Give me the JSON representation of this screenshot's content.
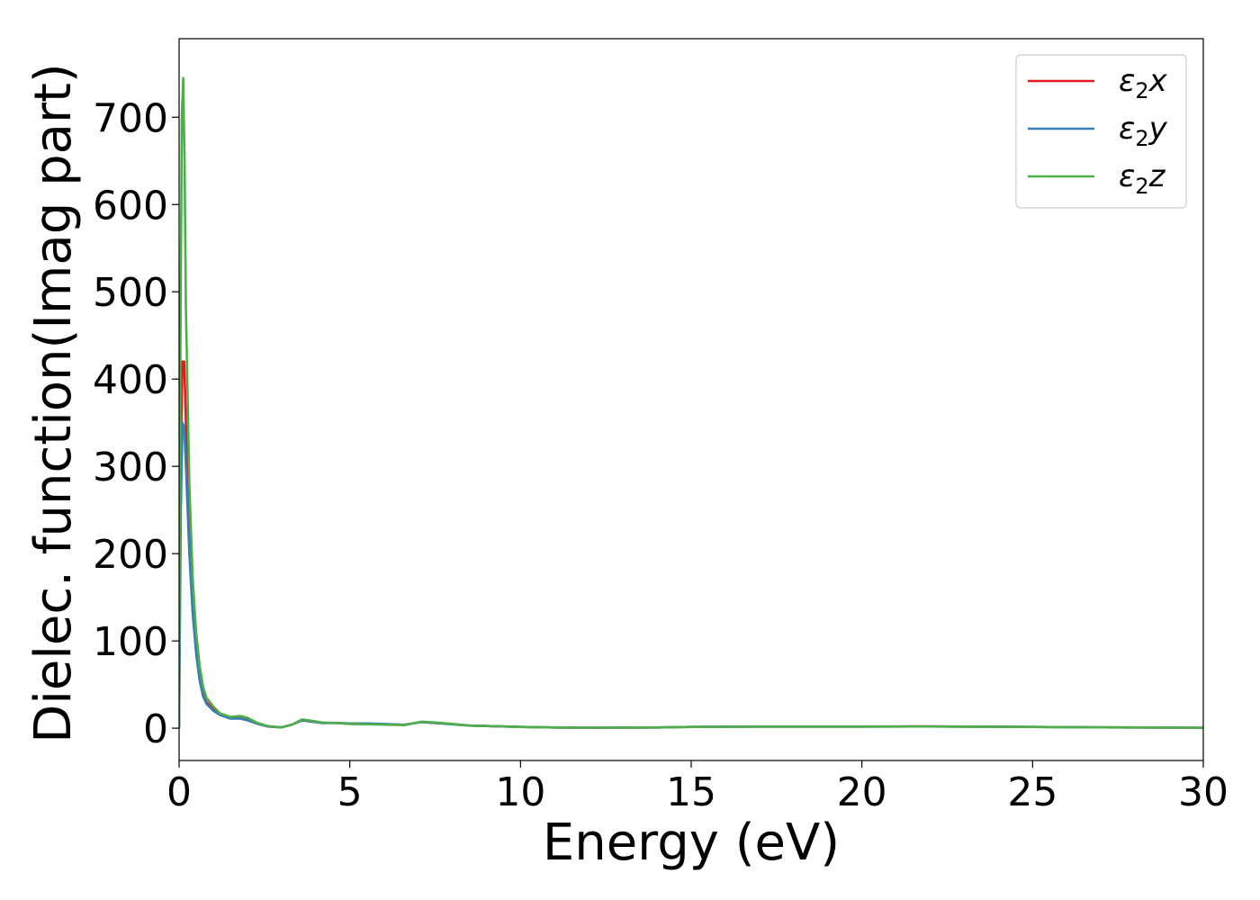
{
  "chart_data": {
    "type": "line",
    "title": "",
    "xlabel": "Energy (eV)",
    "ylabel": "Dielec. function(Imag part)",
    "xlim": [
      0,
      30
    ],
    "ylim": [
      -37,
      790
    ],
    "xticks": [
      0,
      5,
      10,
      15,
      20,
      25,
      30
    ],
    "yticks": [
      0,
      100,
      200,
      300,
      400,
      500,
      600,
      700
    ],
    "legend_position": "top-right",
    "grid": false,
    "series": [
      {
        "name": "ε₂x",
        "legend_base": "ε",
        "legend_sub": "2",
        "legend_suffix": "x",
        "color": "#e41a1c",
        "points": [
          [
            0,
            0
          ],
          [
            0.05,
            320
          ],
          [
            0.1,
            420
          ],
          [
            0.15,
            420
          ],
          [
            0.2,
            350
          ],
          [
            0.3,
            230
          ],
          [
            0.4,
            145
          ],
          [
            0.5,
            95
          ],
          [
            0.6,
            60
          ],
          [
            0.7,
            40
          ],
          [
            0.8,
            30
          ],
          [
            1.0,
            22
          ],
          [
            1.2,
            16
          ],
          [
            1.5,
            12
          ],
          [
            1.8,
            12
          ],
          [
            2.0,
            10
          ],
          [
            2.3,
            5
          ],
          [
            2.6,
            2
          ],
          [
            3.0,
            1
          ],
          [
            3.3,
            4
          ],
          [
            3.6,
            9
          ],
          [
            3.8,
            8
          ],
          [
            4.2,
            6
          ],
          [
            4.6,
            6
          ],
          [
            5.0,
            5
          ],
          [
            5.5,
            5
          ],
          [
            6.0,
            4.5
          ],
          [
            6.6,
            4
          ],
          [
            7.1,
            7
          ],
          [
            7.5,
            6
          ],
          [
            8.0,
            4.5
          ],
          [
            8.5,
            3
          ],
          [
            9.0,
            2.5
          ],
          [
            10,
            1.5
          ],
          [
            11,
            0.8
          ],
          [
            12,
            0.6
          ],
          [
            14,
            0.8
          ],
          [
            15,
            1.5
          ],
          [
            17,
            1.8
          ],
          [
            20,
            1.8
          ],
          [
            22,
            2
          ],
          [
            25,
            1.5
          ],
          [
            27,
            1
          ],
          [
            30,
            0.5
          ]
        ]
      },
      {
        "name": "ε₂y",
        "legend_base": "ε",
        "legend_sub": "2",
        "legend_suffix": "y",
        "color": "#377eb8",
        "points": [
          [
            0,
            0
          ],
          [
            0.05,
            250
          ],
          [
            0.1,
            350
          ],
          [
            0.15,
            345
          ],
          [
            0.2,
            300
          ],
          [
            0.3,
            200
          ],
          [
            0.4,
            130
          ],
          [
            0.5,
            85
          ],
          [
            0.6,
            55
          ],
          [
            0.7,
            37
          ],
          [
            0.8,
            28
          ],
          [
            1.0,
            20
          ],
          [
            1.2,
            15
          ],
          [
            1.5,
            11
          ],
          [
            1.8,
            11
          ],
          [
            2.0,
            9
          ],
          [
            2.3,
            5
          ],
          [
            2.6,
            2
          ],
          [
            3.0,
            1
          ],
          [
            3.3,
            4
          ],
          [
            3.6,
            9
          ],
          [
            3.8,
            8
          ],
          [
            4.2,
            6
          ],
          [
            4.6,
            6
          ],
          [
            5.0,
            5.5
          ],
          [
            5.5,
            5.5
          ],
          [
            6.0,
            4.8
          ],
          [
            6.6,
            4
          ],
          [
            7.1,
            7
          ],
          [
            7.5,
            6
          ],
          [
            8.0,
            4.5
          ],
          [
            8.5,
            3
          ],
          [
            9.0,
            2.5
          ],
          [
            10,
            1.5
          ],
          [
            11,
            0.8
          ],
          [
            12,
            0.6
          ],
          [
            14,
            0.8
          ],
          [
            15,
            1.5
          ],
          [
            17,
            1.8
          ],
          [
            20,
            1.8
          ],
          [
            22,
            2
          ],
          [
            25,
            1.5
          ],
          [
            27,
            1
          ],
          [
            30,
            0.5
          ]
        ]
      },
      {
        "name": "ε₂z",
        "legend_base": "ε",
        "legend_sub": "2",
        "legend_suffix": "z",
        "color": "#4daf4a",
        "points": [
          [
            0,
            0
          ],
          [
            0.04,
            450
          ],
          [
            0.08,
            700
          ],
          [
            0.12,
            745
          ],
          [
            0.16,
            650
          ],
          [
            0.2,
            480
          ],
          [
            0.3,
            280
          ],
          [
            0.4,
            170
          ],
          [
            0.5,
            110
          ],
          [
            0.6,
            72
          ],
          [
            0.7,
            48
          ],
          [
            0.8,
            35
          ],
          [
            1.0,
            25
          ],
          [
            1.2,
            17
          ],
          [
            1.5,
            13
          ],
          [
            1.8,
            14
          ],
          [
            2.0,
            12
          ],
          [
            2.3,
            6
          ],
          [
            2.6,
            2.5
          ],
          [
            3.0,
            1
          ],
          [
            3.3,
            4
          ],
          [
            3.6,
            10
          ],
          [
            3.8,
            9
          ],
          [
            4.2,
            6.5
          ],
          [
            4.6,
            6
          ],
          [
            5.0,
            5
          ],
          [
            5.5,
            4.5
          ],
          [
            6.0,
            4
          ],
          [
            6.6,
            3.5
          ],
          [
            7.1,
            7.5
          ],
          [
            7.5,
            6.5
          ],
          [
            8.0,
            5
          ],
          [
            8.5,
            3
          ],
          [
            9.0,
            2.5
          ],
          [
            10,
            1.5
          ],
          [
            11,
            0.8
          ],
          [
            12,
            0.6
          ],
          [
            14,
            0.8
          ],
          [
            15,
            1.5
          ],
          [
            17,
            1.8
          ],
          [
            20,
            1.8
          ],
          [
            22,
            2
          ],
          [
            25,
            1.5
          ],
          [
            27,
            1
          ],
          [
            30,
            0.5
          ]
        ]
      }
    ]
  }
}
